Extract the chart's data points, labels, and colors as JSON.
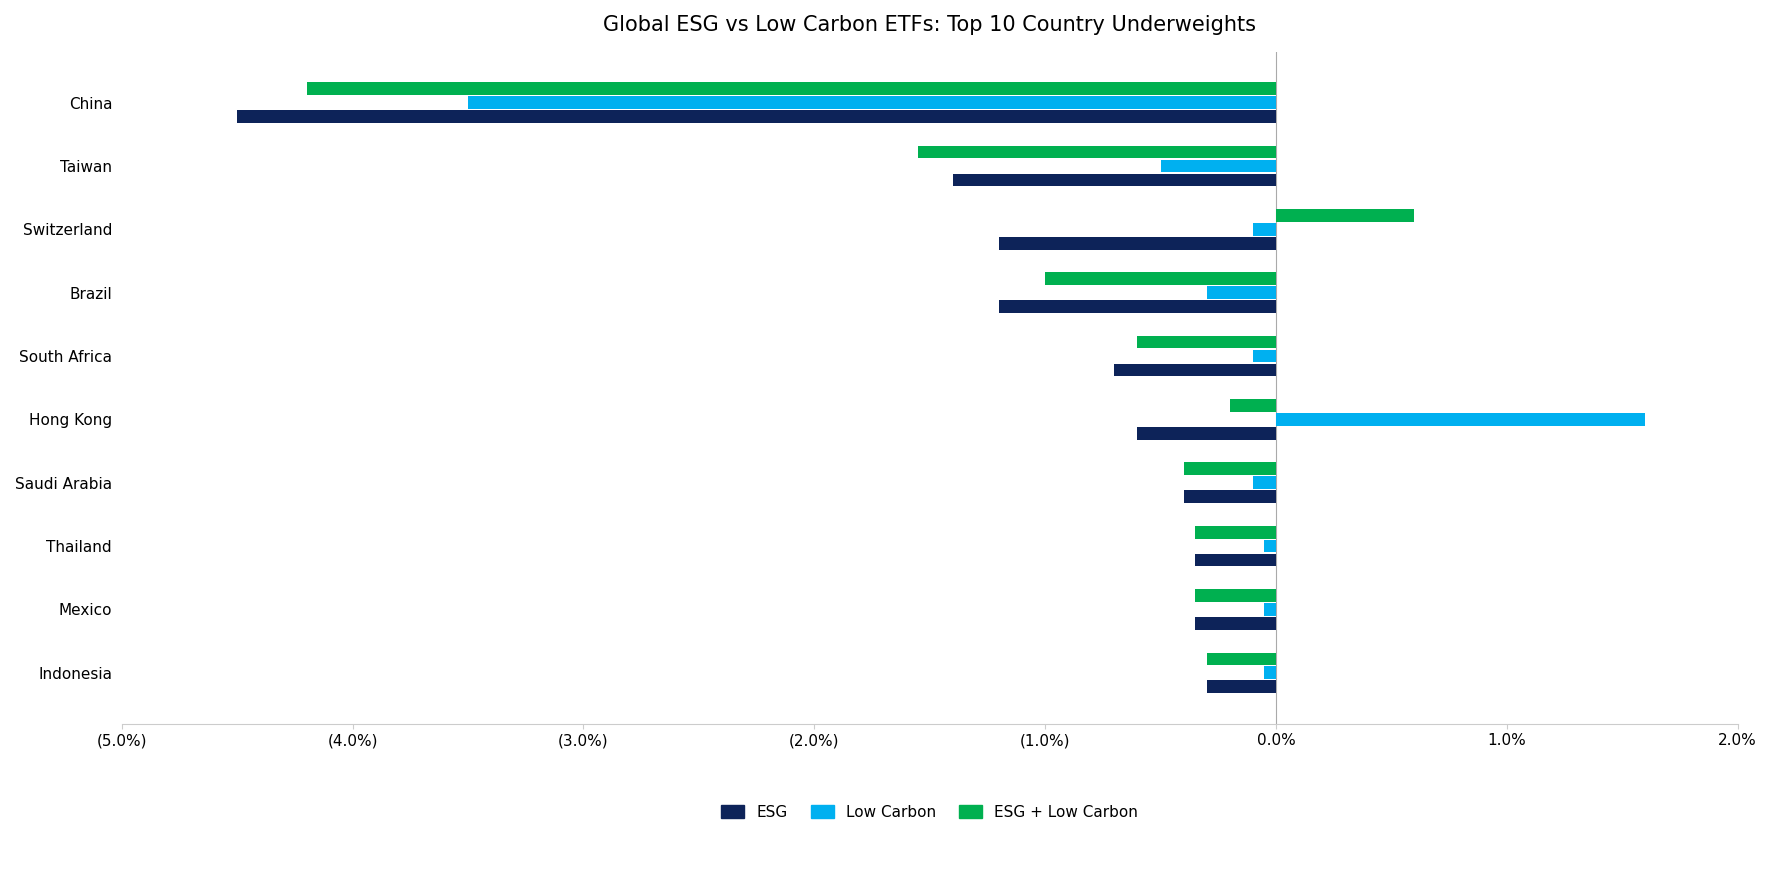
{
  "title": "Global ESG vs Low Carbon ETFs: Top 10 Country Underweights",
  "categories": [
    "China",
    "Taiwan",
    "Switzerland",
    "Brazil",
    "South Africa",
    "Hong Kong",
    "Saudi Arabia",
    "Thailand",
    "Mexico",
    "Indonesia"
  ],
  "series": {
    "ESG": [
      -0.045,
      -0.014,
      -0.012,
      -0.012,
      -0.007,
      -0.006,
      -0.004,
      -0.0035,
      -0.0035,
      -0.003
    ],
    "Low Carbon": [
      -0.035,
      -0.005,
      -0.001,
      -0.003,
      -0.001,
      0.016,
      -0.001,
      -0.0005,
      -0.0005,
      -0.0005
    ],
    "ESG + Low Carbon": [
      -0.042,
      -0.0155,
      0.006,
      -0.01,
      -0.006,
      -0.002,
      -0.004,
      -0.0035,
      -0.0035,
      -0.003
    ]
  },
  "colors": {
    "ESG": "#0d2359",
    "Low Carbon": "#00b0f0",
    "ESG + Low Carbon": "#00b050"
  },
  "xlim": [
    -0.05,
    0.02
  ],
  "xticks": [
    -0.05,
    -0.04,
    -0.03,
    -0.02,
    -0.01,
    0.0,
    0.01,
    0.02
  ],
  "xtick_labels": [
    "(5.0%)",
    "(4.0%)",
    "(3.0%)",
    "(2.0%)",
    "(1.0%)",
    "0.0%",
    "1.0%",
    "2.0%"
  ],
  "background_color": "#ffffff",
  "bar_height": 0.2,
  "bar_spacing": 0.22,
  "title_fontsize": 15,
  "tick_fontsize": 11,
  "legend_fontsize": 11
}
